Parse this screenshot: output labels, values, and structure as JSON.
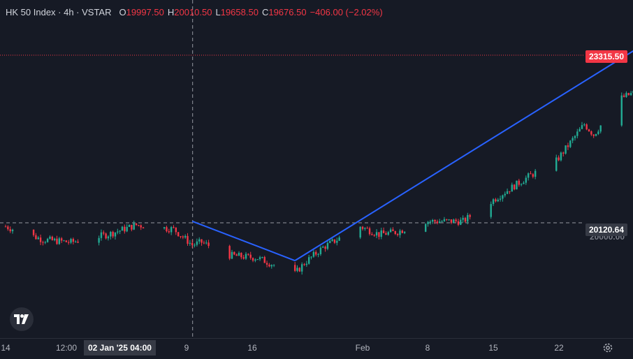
{
  "header": {
    "symbol": "HK 50 Index · 4h · VSTAR",
    "o_label": "O",
    "o_value": "19997.50",
    "h_label": "H",
    "h_value": "20010.50",
    "l_label": "L",
    "l_value": "19658.50",
    "c_label": "C",
    "c_value": "19676.50",
    "change": "−406.00 (−2.02%)"
  },
  "price_scale": {
    "last_price": "23315.50",
    "crosshair_price": "20120.64",
    "hidden_price": "20000.00"
  },
  "time_axis": {
    "ticks": [
      "14",
      "12:00",
      "9",
      "16",
      "Feb",
      "8",
      "15",
      "22"
    ],
    "crosshair_time": "02 Jan '25  04:00"
  },
  "colors": {
    "background": "#161a25",
    "up": "#22ab94",
    "down": "#f23645",
    "trendline": "#2962ff",
    "crosshair": "#9598a1"
  },
  "icons": {
    "logo": "tradingview-logo-icon",
    "settings": "gear-icon"
  },
  "chart_data": {
    "type": "candlestick",
    "timeframe": "4h",
    "x_range": [
      "2024-12-13",
      "2025-02-24"
    ],
    "y_range_approx": [
      19300,
      23700
    ],
    "last_price": 23315.5,
    "crosshair_price": 20120.64,
    "anchors": [
      {
        "date": "2024-12-13",
        "close": 20050
      },
      {
        "date": "2024-12-17",
        "close": 19800
      },
      {
        "date": "2024-12-20",
        "close": 19750
      },
      {
        "date": "2024-12-24",
        "close": 19900
      },
      {
        "date": "2024-12-27",
        "close": 20080
      },
      {
        "date": "2024-12-31",
        "close": 20000
      },
      {
        "date": "2025-01-02",
        "close": 19700
      },
      {
        "date": "2025-01-03",
        "close": 19750
      },
      {
        "date": "2025-01-06",
        "close": 19500
      },
      {
        "date": "2025-01-09",
        "close": 19450
      },
      {
        "date": "2025-01-13",
        "close": 19150
      },
      {
        "date": "2025-01-14",
        "close": 19350
      },
      {
        "date": "2025-01-16",
        "close": 19650
      },
      {
        "date": "2025-01-20",
        "close": 20050
      },
      {
        "date": "2025-01-22",
        "close": 19900
      },
      {
        "date": "2025-01-24",
        "close": 19950
      },
      {
        "date": "2025-01-27",
        "close": 20150
      },
      {
        "date": "2025-01-31",
        "close": 20150
      },
      {
        "date": "2025-02-04",
        "close": 20650
      },
      {
        "date": "2025-02-07",
        "close": 21000
      },
      {
        "date": "2025-02-10",
        "close": 21300
      },
      {
        "date": "2025-02-13",
        "close": 22000
      },
      {
        "date": "2025-02-14",
        "close": 21800
      },
      {
        "date": "2025-02-17",
        "close": 22500
      },
      {
        "date": "2025-02-19",
        "close": 22650
      },
      {
        "date": "2025-02-20",
        "close": 22550
      },
      {
        "date": "2025-02-21",
        "close": 23400
      },
      {
        "date": "2025-02-24",
        "close": 23315.5
      }
    ],
    "trendlines": [
      {
        "from": {
          "date": "2025-01-02",
          "price": 20150
        },
        "to": {
          "date": "2025-01-13",
          "price": 19400
        }
      },
      {
        "from": {
          "date": "2025-01-13",
          "price": 19400
        },
        "to": {
          "date": "2025-02-21",
          "price": 23700
        }
      }
    ]
  }
}
